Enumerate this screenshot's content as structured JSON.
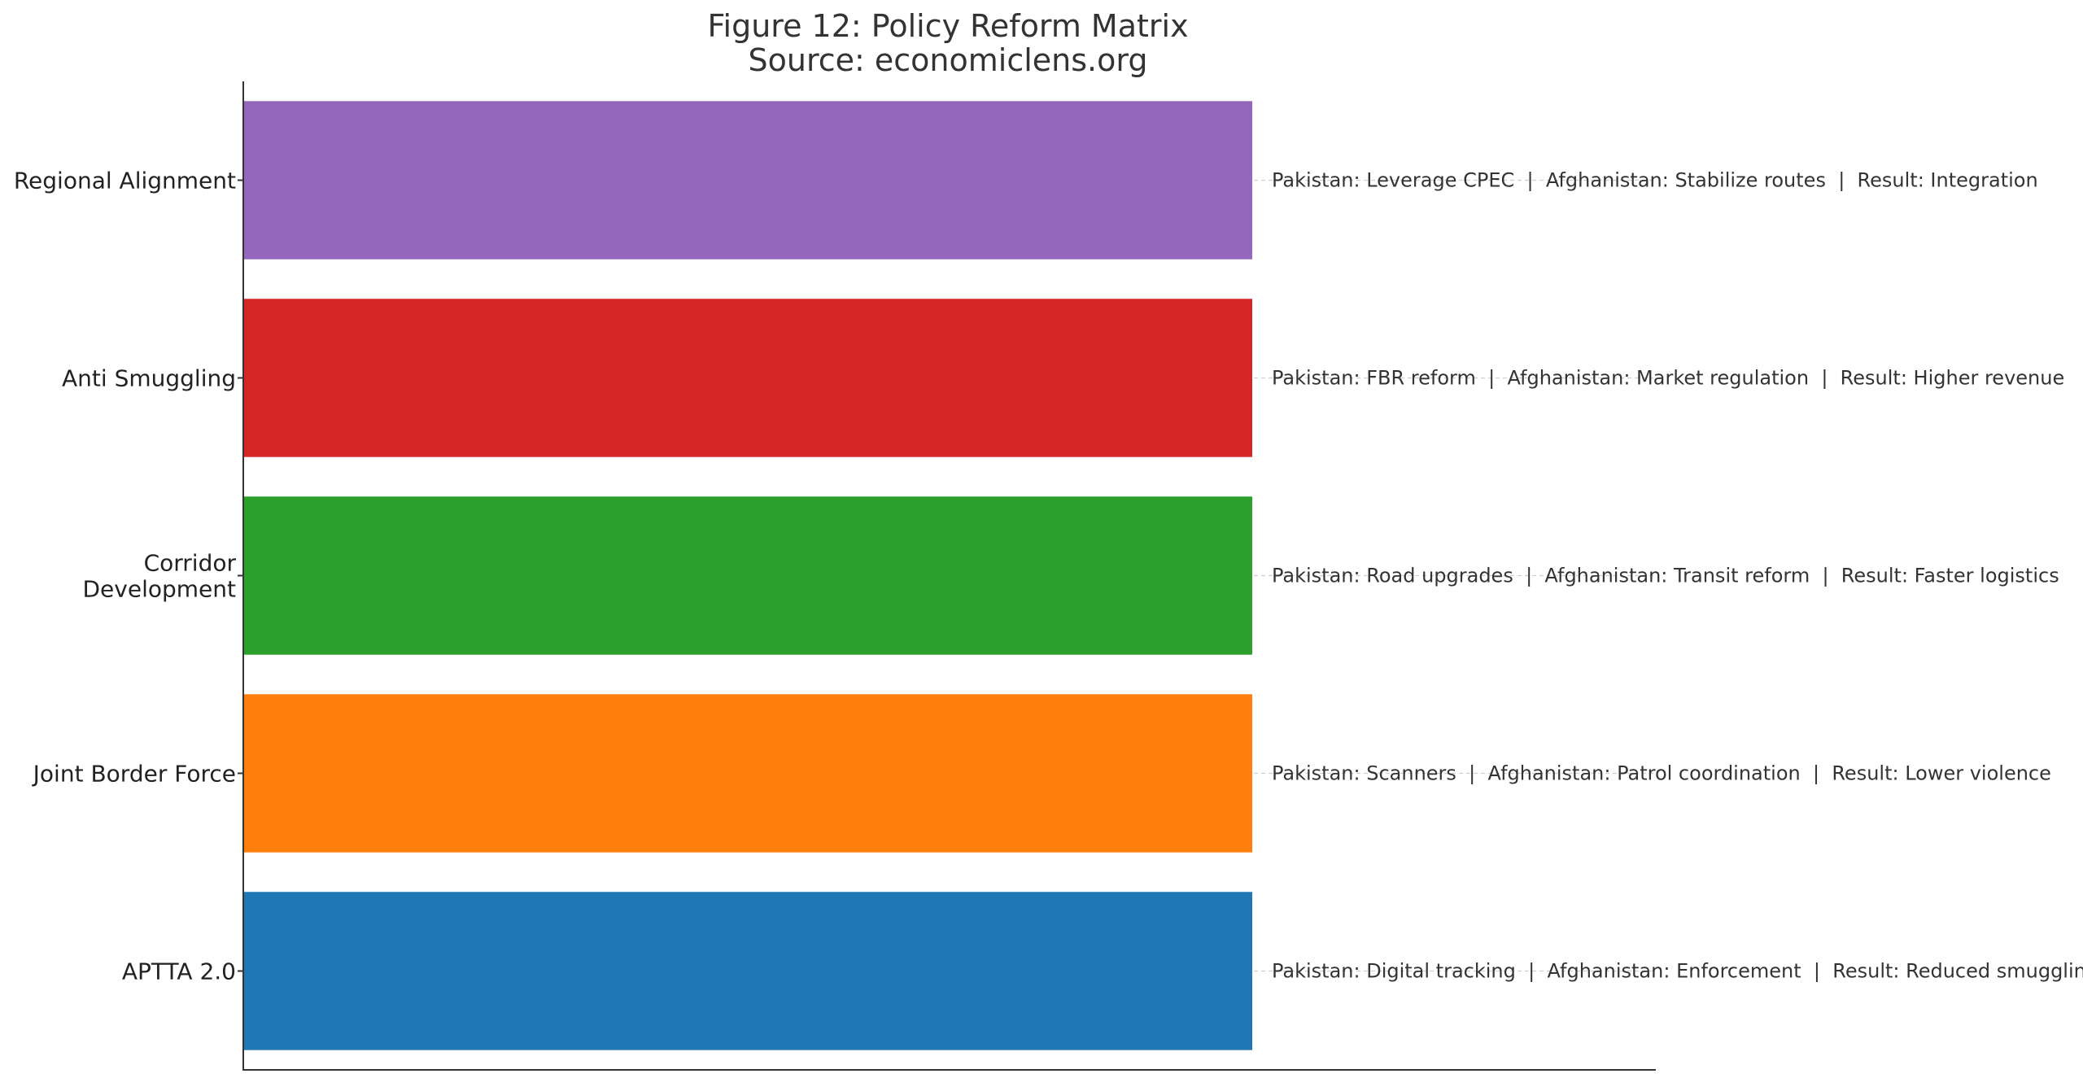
{
  "chart_data": {
    "type": "bar",
    "orientation": "horizontal",
    "title": "Figure 12: Policy Reform Matrix",
    "subtitle": "Source: economiclens.org",
    "xlabel": "",
    "ylabel": "",
    "xlim": [
      0,
      1.4
    ],
    "grid": "horizontal dashed",
    "legend": "none",
    "categories": [
      "APTTA 2.0",
      "Joint Border Force",
      "Corridor Development",
      "Anti Smuggling",
      "Regional Alignment"
    ],
    "category_lines": [
      [
        "APTTA 2.0"
      ],
      [
        "Joint Border Force"
      ],
      [
        "Corridor",
        "Development"
      ],
      [
        "Anti Smuggling"
      ],
      [
        "Regional Alignment"
      ]
    ],
    "values": [
      1,
      1,
      1,
      1,
      1
    ],
    "colors": [
      "#1f77b4",
      "#ff7f0e",
      "#2ca02c",
      "#d62728",
      "#9467bd"
    ],
    "annotations": [
      "Pakistan: Digital tracking  |  Afghanistan: Enforcement  |  Result: Reduced smuggling",
      "Pakistan: Scanners  |  Afghanistan: Patrol coordination  |  Result: Lower violence",
      "Pakistan: Road upgrades  |  Afghanistan: Transit reform  |  Result: Faster logistics",
      "Pakistan: FBR reform  |  Afghanistan: Market regulation  |  Result: Higher revenue",
      "Pakistan: Leverage CPEC  |  Afghanistan: Stabilize routes  |  Result: Integration"
    ]
  }
}
